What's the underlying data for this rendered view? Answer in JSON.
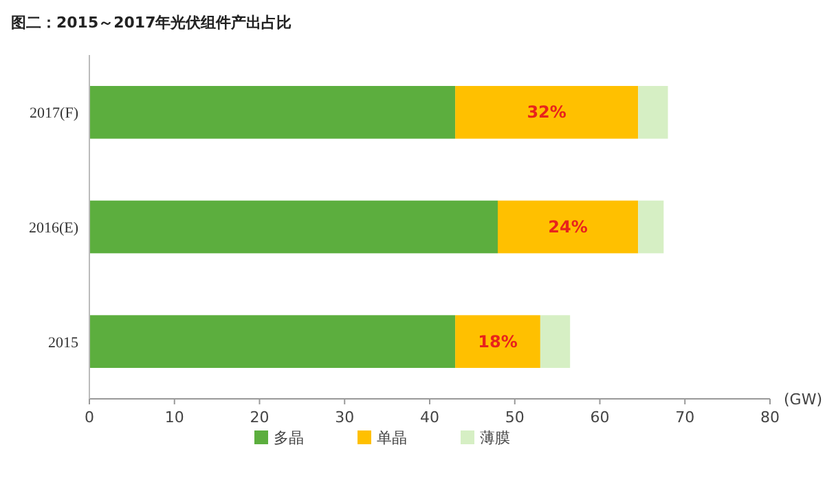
{
  "chart_data": {
    "type": "bar",
    "orientation": "horizontal",
    "stacked": true,
    "title": "图二：2015～2017年光伏组件产出占比",
    "xlabel": "(GW)",
    "categories": [
      "2017(F)",
      "2016(E)",
      "2015"
    ],
    "series": [
      {
        "name": "多晶",
        "color": "#5cae3e",
        "values": [
          43,
          48,
          43
        ]
      },
      {
        "name": "单晶",
        "color": "#ffc000",
        "values": [
          21.5,
          16.5,
          10
        ]
      },
      {
        "name": "薄膜",
        "color": "#d6efc4",
        "values": [
          3.5,
          3,
          3.5
        ]
      }
    ],
    "xlim": [
      0,
      80
    ],
    "xticks": [
      0,
      10,
      20,
      30,
      40,
      50,
      60,
      70,
      80
    ],
    "annotations": [
      "32%",
      "24%",
      "18%"
    ],
    "grid": false,
    "legend": "bottom"
  }
}
